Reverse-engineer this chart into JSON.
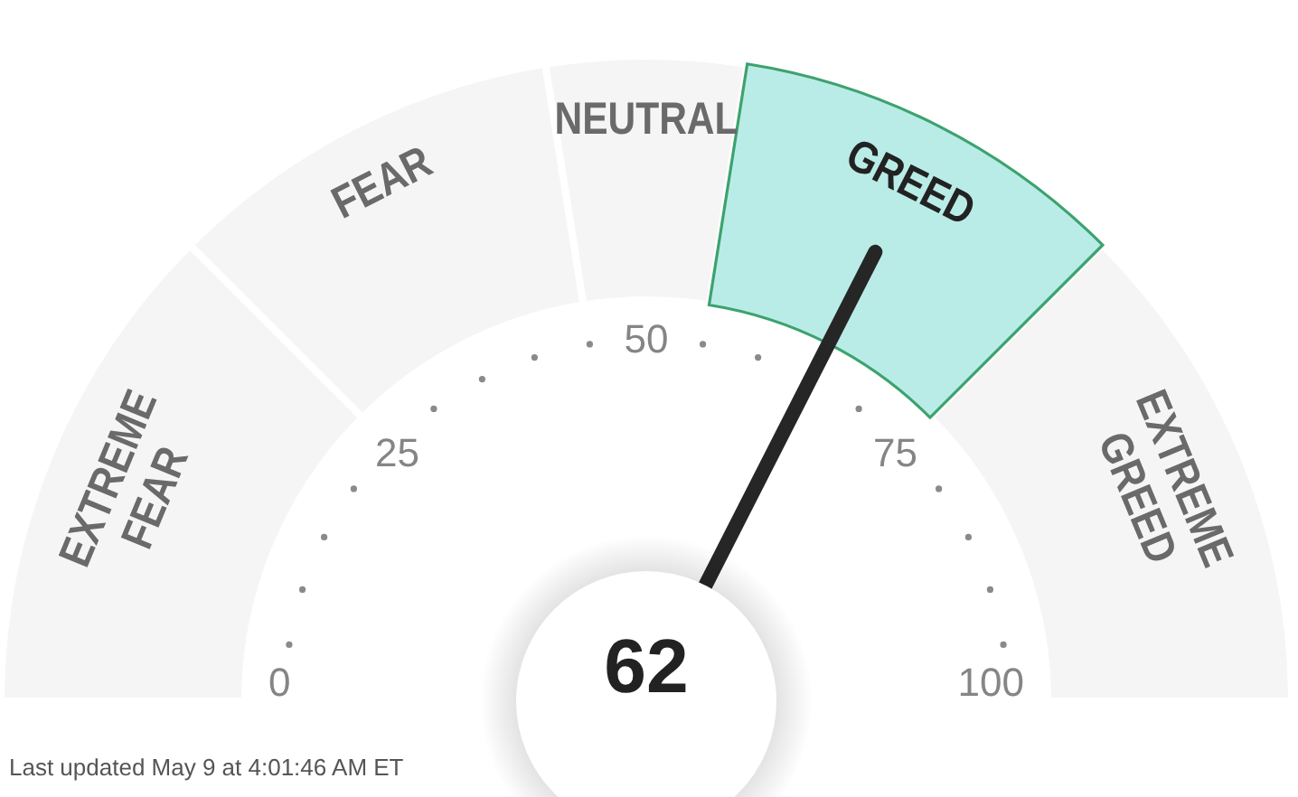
{
  "chart_data": {
    "type": "donut",
    "categories": [
      "EXTREME FEAR",
      "FEAR",
      "NEUTRAL",
      "GREED",
      "EXTREME GREED"
    ],
    "values": [
      25,
      20,
      10,
      20,
      25
    ],
    "colors": [
      "#f5f5f5",
      "#f5f5f5",
      "#f5f5f5",
      "#b9ece7",
      "#f5f5f5"
    ],
    "needle": "GREED",
    "annotations": [
      "0",
      "25",
      "50",
      "75",
      "100",
      "62",
      "Last updated May 9 at 4:01:46 AM ET"
    ]
  }
}
